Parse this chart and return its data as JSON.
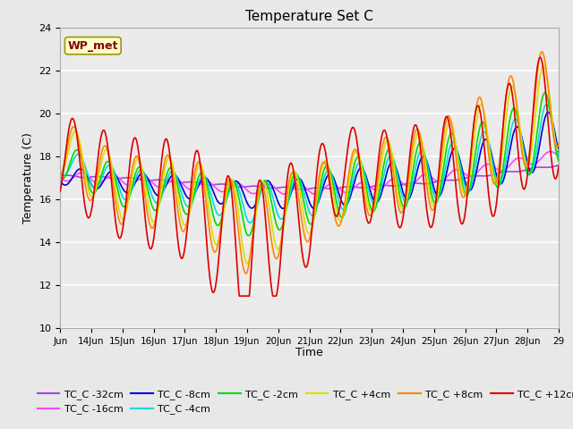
{
  "title": "Temperature Set C",
  "xlabel": "Time",
  "ylabel": "Temperature (C)",
  "ylim": [
    10,
    24
  ],
  "xlim": [
    0,
    16
  ],
  "x_tick_labels": [
    "Jun",
    "14Jun",
    "15Jun",
    "16Jun",
    "17Jun",
    "18Jun",
    "19Jun",
    "20Jun",
    "21Jun",
    "22Jun",
    "23Jun",
    "24Jun",
    "25Jun",
    "26Jun",
    "27Jun",
    "28Jun",
    "29"
  ],
  "series_colors": {
    "TC_C -32cm": "#AA44DD",
    "TC_C -16cm": "#FF44FF",
    "TC_C -8cm": "#0000DD",
    "TC_C -4cm": "#00DDDD",
    "TC_C -2cm": "#00DD00",
    "TC_C +4cm": "#DDDD00",
    "TC_C +8cm": "#FF8800",
    "TC_C +12cm": "#DD0000"
  },
  "wp_met_box_color": "#FFFFCC",
  "wp_met_text_color": "#880000",
  "background_color": "#E8E8E8",
  "plot_bg_color": "#EBEBEB",
  "grid_color": "#FFFFFF"
}
